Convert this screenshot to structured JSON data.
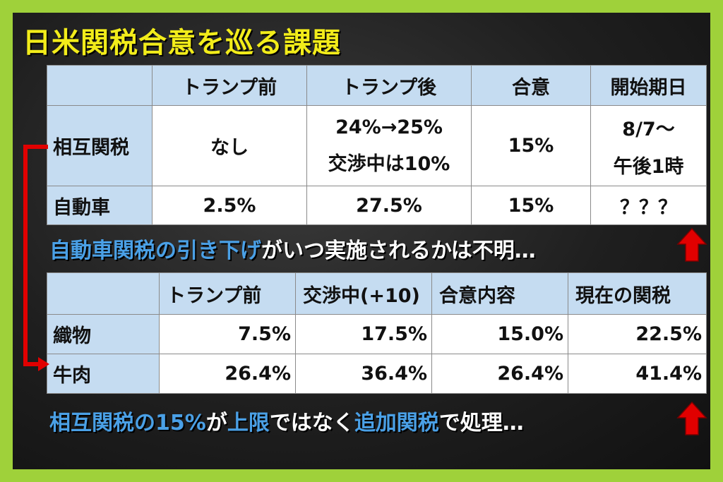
{
  "title": "日米関税合意を巡る課題",
  "table1": {
    "headers": [
      "",
      "トランプ前",
      "トランプ後",
      "合意",
      "開始期日"
    ],
    "rows": [
      {
        "label": "相互関税",
        "before": "なし",
        "after_line1": "24%→25%",
        "after_line2": "交渉中は10%",
        "agreed": "15%",
        "start_line1": "8/7～",
        "start_line2": "午後1時"
      },
      {
        "label": "自動車",
        "before": "2.5%",
        "after_line1": "27.5%",
        "after_line2": "",
        "agreed": "15%",
        "start_line1": "？？？",
        "start_line2": ""
      }
    ]
  },
  "note1": {
    "highlight": "自動車関税の引き下げ",
    "rest": "がいつ実施されるかは不明…"
  },
  "table2": {
    "headers": [
      "",
      "トランプ前",
      "交渉中(+10)",
      "合意内容",
      "現在の関税"
    ],
    "rows": [
      {
        "label": "織物",
        "values": [
          "7.5%",
          "17.5%",
          "15.0%",
          "22.5%"
        ]
      },
      {
        "label": "牛肉",
        "values": [
          "26.4%",
          "36.4%",
          "26.4%",
          "41.4%"
        ]
      }
    ]
  },
  "note2": {
    "part1": "相互関税の15%",
    "part2": "が",
    "part3": "上限",
    "part4": "ではなく",
    "part5": "追加関税",
    "part6": "で処理…"
  },
  "colors": {
    "frame": "#9fd13a",
    "title": "#f2ec1a",
    "header_bg": "#c5dcf1",
    "highlight": "#4aa0e6",
    "arrow": "#e10000"
  },
  "icons": [
    "up-arrow-icon",
    "bracket-arrow-icon"
  ]
}
